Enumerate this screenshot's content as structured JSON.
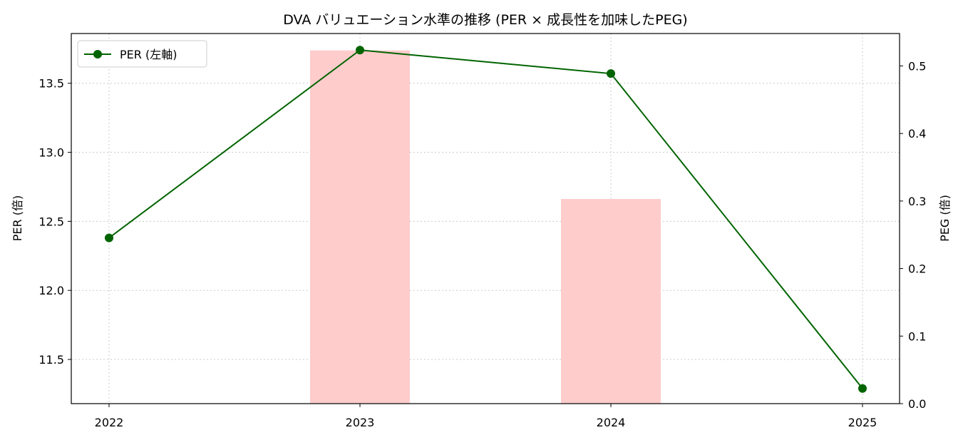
{
  "chart_data": {
    "type": "line",
    "title": "DVA バリュエーション水準の推移 (PER × 成長性を加味したPEG)",
    "x": [
      "2022",
      "2023",
      "2024",
      "2025"
    ],
    "series": [
      {
        "name": "PER (左軸)",
        "type": "line",
        "axis": "left",
        "color": "#006400",
        "marker": "circle",
        "values": [
          12.38,
          13.74,
          13.57,
          11.29
        ]
      },
      {
        "type": "bar",
        "axis": "right",
        "color": "#ffcccc",
        "values": [
          0.0,
          0.523,
          0.0,
          0.0
        ]
      },
      {
        "type": "bar",
        "axis": "right",
        "color": "#ffcccc",
        "values": [
          0.0,
          0.0,
          0.303,
          0.0
        ]
      }
    ],
    "ylabel_left": "PER (倍)",
    "ylabel_right": "PEG (倍)",
    "ylim_left": [
      11.18,
      13.86
    ],
    "ylim_right": [
      0.0,
      0.548
    ],
    "yticks_left": [
      "11.5",
      "12.0",
      "12.5",
      "13.0",
      "13.5"
    ],
    "yticks_right": [
      "0.0",
      "0.1",
      "0.2",
      "0.3",
      "0.4",
      "0.5"
    ],
    "grid": true,
    "legend_position": "top-left"
  }
}
